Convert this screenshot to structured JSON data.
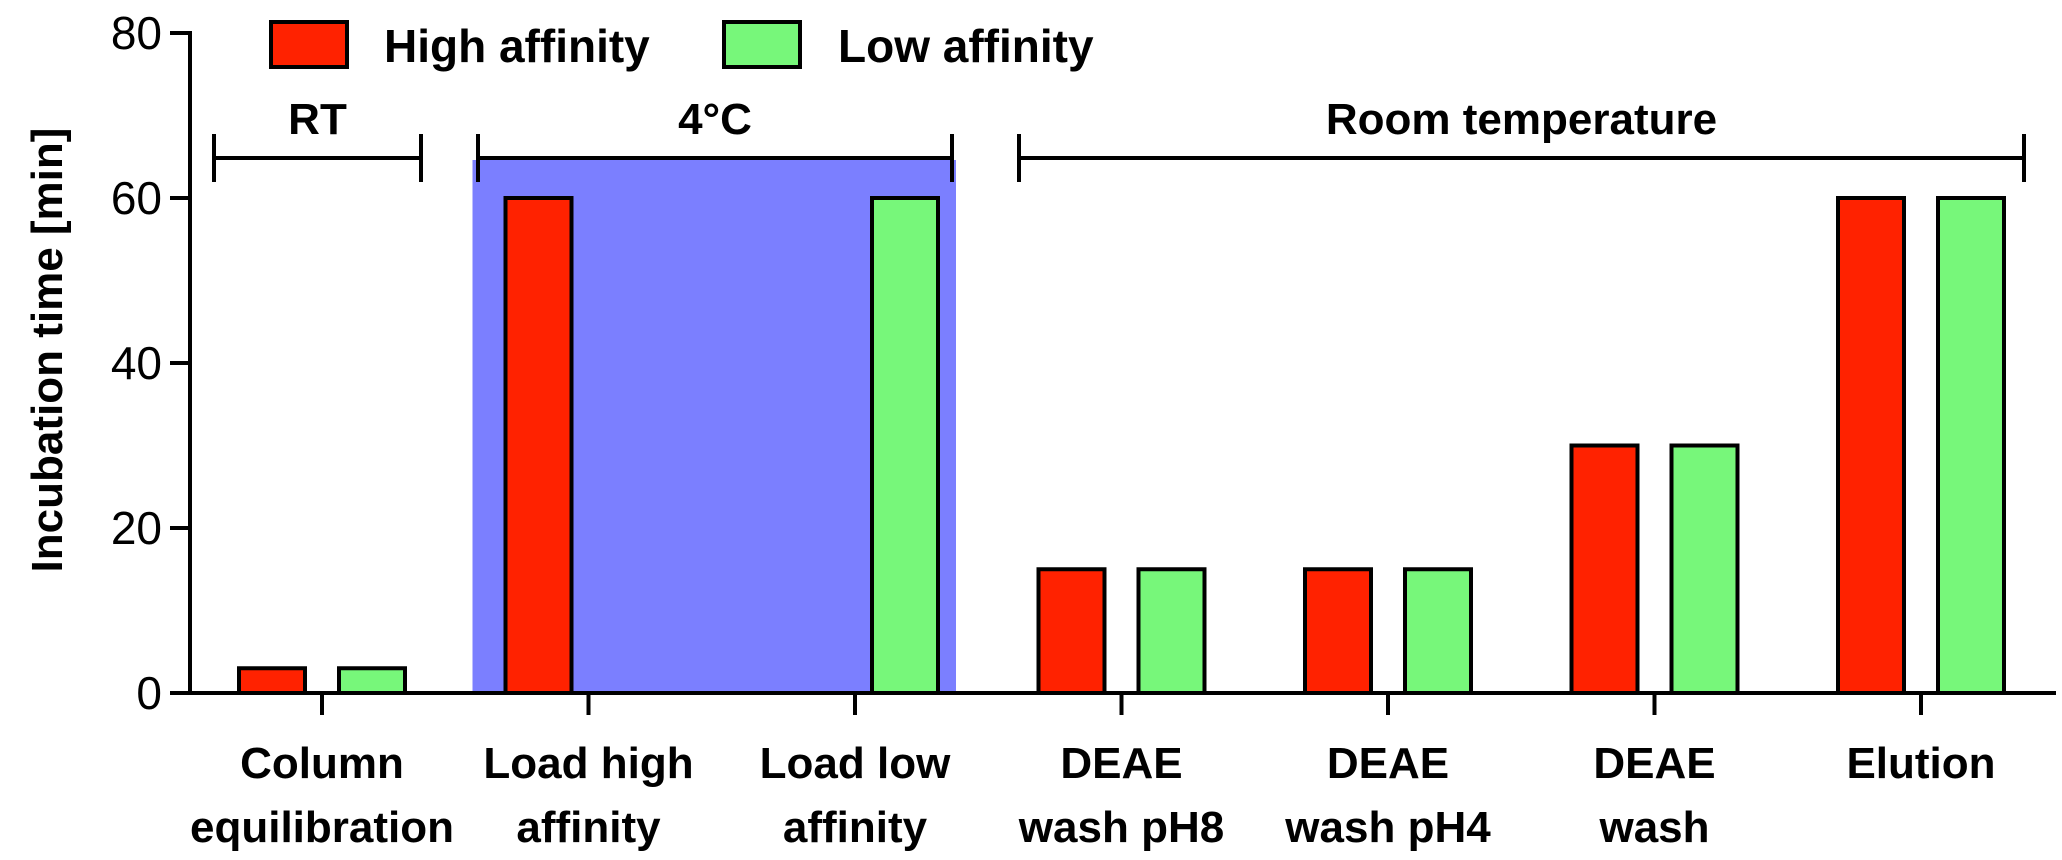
{
  "chart_data": {
    "type": "bar",
    "ylabel": "Incubation time [min]",
    "ylim": [
      0,
      80
    ],
    "y_ticks": [
      "0",
      "20",
      "40",
      "60",
      "80"
    ],
    "categories": [
      [
        "Column",
        "equilibration"
      ],
      [
        "Load high",
        "affinity"
      ],
      [
        "Load low",
        "affinity"
      ],
      [
        "DEAE",
        "wash pH8"
      ],
      [
        "DEAE",
        "wash pH4"
      ],
      [
        "DEAE",
        "wash"
      ],
      [
        "Elution"
      ]
    ],
    "series": [
      {
        "name": "High affinity",
        "color": "#ff2200",
        "values": [
          3,
          60,
          0,
          15,
          15,
          30,
          60
        ]
      },
      {
        "name": "Low affinity",
        "color": "#77f77a",
        "values": [
          3,
          0,
          60,
          15,
          15,
          30,
          60
        ]
      }
    ],
    "legend_position": "top-left",
    "temperature_brackets": [
      {
        "label": "RT",
        "from_category": 0,
        "to_category": 0
      },
      {
        "label": "4°C",
        "from_category": 1,
        "to_category": 2
      },
      {
        "label": "Room temperature",
        "from_category": 3,
        "to_category": 6
      }
    ],
    "highlight": {
      "color": "#7b7fff",
      "from_category": 1,
      "to_category": 2
    }
  }
}
